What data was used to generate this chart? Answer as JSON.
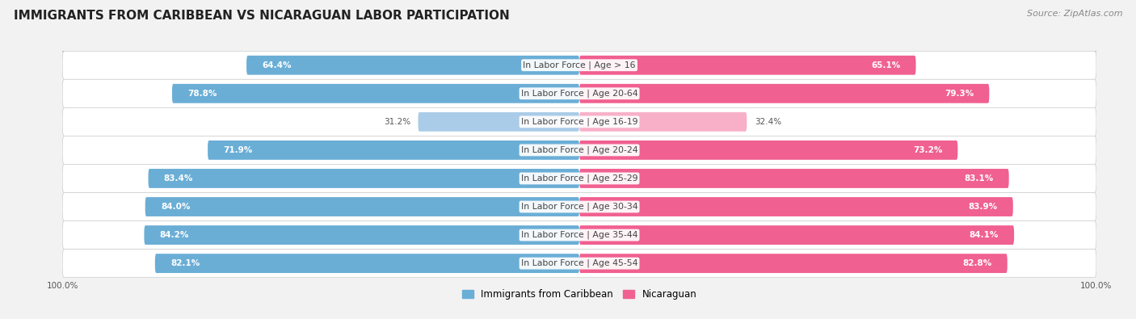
{
  "title": "IMMIGRANTS FROM CARIBBEAN VS NICARAGUAN LABOR PARTICIPATION",
  "source": "Source: ZipAtlas.com",
  "categories": [
    "In Labor Force | Age > 16",
    "In Labor Force | Age 20-64",
    "In Labor Force | Age 16-19",
    "In Labor Force | Age 20-24",
    "In Labor Force | Age 25-29",
    "In Labor Force | Age 30-34",
    "In Labor Force | Age 35-44",
    "In Labor Force | Age 45-54"
  ],
  "caribbean_values": [
    64.4,
    78.8,
    31.2,
    71.9,
    83.4,
    84.0,
    84.2,
    82.1
  ],
  "nicaraguan_values": [
    65.1,
    79.3,
    32.4,
    73.2,
    83.1,
    83.9,
    84.1,
    82.8
  ],
  "caribbean_color": "#6aaed6",
  "caribbean_color_light": "#aacce8",
  "nicaraguan_color": "#f06090",
  "nicaraguan_color_light": "#f8b0c8",
  "caribbean_label": "Immigrants from Caribbean",
  "nicaraguan_label": "Nicaraguan",
  "bar_height": 0.68,
  "max_value": 100.0,
  "bg_color": "#f2f2f2",
  "title_fontsize": 11,
  "label_fontsize": 7.8,
  "value_fontsize": 7.5,
  "axis_label_fontsize": 7.5,
  "legend_fontsize": 8.5
}
